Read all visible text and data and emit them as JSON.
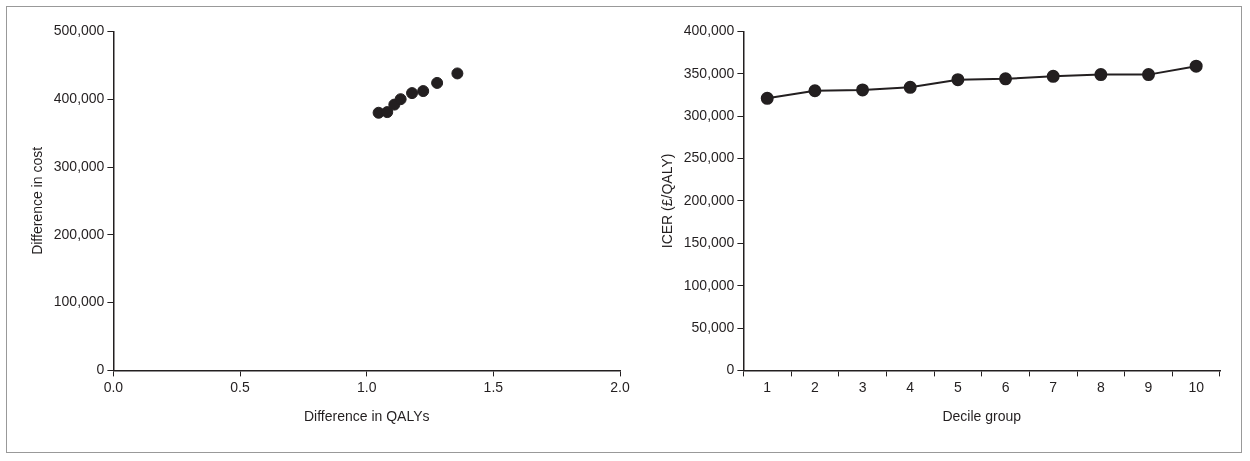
{
  "chart_data": [
    {
      "type": "scatter",
      "xlabel": "Difference in QALYs",
      "ylabel": "Difference in cost",
      "x": [
        1.047,
        1.081,
        1.109,
        1.134,
        1.179,
        1.223,
        1.278,
        1.358
      ],
      "values": [
        380000,
        381000,
        392000,
        400000,
        409000,
        412000,
        424000,
        438000
      ],
      "color": "#231f20",
      "marker": "circle",
      "xlim": [
        0,
        2
      ],
      "xticks": [
        {
          "value": 0,
          "label": "0.0"
        },
        {
          "value": 0.5,
          "label": "0.5"
        },
        {
          "value": 1,
          "label": "1.0"
        },
        {
          "value": 1.5,
          "label": "1.5"
        },
        {
          "value": 2,
          "label": "2.0"
        }
      ],
      "ylim": [
        0,
        500000
      ],
      "yticks": [
        0,
        {
          "value": 100000,
          "label": "100,000"
        },
        {
          "value": 200000,
          "label": "200,000"
        },
        {
          "value": 300000,
          "label": "300,000"
        },
        {
          "value": 400000,
          "label": "400,000"
        },
        {
          "value": 500000,
          "label": "500,000"
        }
      ],
      "grid": false,
      "legend": false
    },
    {
      "type": "line",
      "xlabel": "Decile group",
      "ylabel": "ICER (£/QALY)",
      "categories": [
        "1",
        "2",
        "3",
        "4",
        "5",
        "6",
        "7",
        "8",
        "9",
        "10"
      ],
      "values": [
        321000,
        330000,
        331000,
        334000,
        343000,
        344000,
        347000,
        349000,
        349000,
        359000
      ],
      "color": "#231f20",
      "marker": "circle",
      "line_style": "solid",
      "ylim": [
        0,
        400000
      ],
      "yticks": [
        0,
        {
          "value": 50000,
          "label": "50,000"
        },
        {
          "value": 100000,
          "label": "100,000"
        },
        {
          "value": 150000,
          "label": "150,000"
        },
        {
          "value": 200000,
          "label": "200,000"
        },
        {
          "value": 250000,
          "label": "250,000"
        },
        {
          "value": 300000,
          "label": "300,000"
        },
        {
          "value": 350000,
          "label": "350,000"
        },
        {
          "value": 400000,
          "label": "400,000"
        }
      ],
      "grid": false,
      "legend": false
    }
  ]
}
